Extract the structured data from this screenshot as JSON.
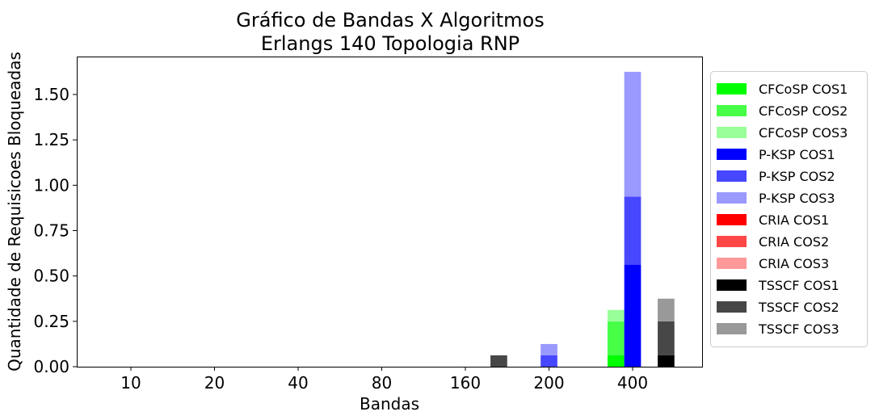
{
  "chart_data": {
    "type": "bar",
    "stacked": true,
    "title": "Gráfico de Bandas X Algoritmos",
    "subtitle": "Erlangs 140 Topologia RNP",
    "xlabel": "Bandas",
    "ylabel": "Quantidade de Requisicoes Bloqueadas",
    "categories": [
      "10",
      "20",
      "40",
      "80",
      "160",
      "200",
      "400"
    ],
    "ylim": [
      0,
      1.7
    ],
    "yticks": [
      "0.00",
      "0.25",
      "0.50",
      "0.75",
      "1.00",
      "1.25",
      "1.50"
    ],
    "grid": false,
    "legend_position": "right",
    "algorithms": [
      {
        "name": "CFCoSP",
        "colors": [
          "#00ff00",
          "#47ff47",
          "#99ff99"
        ],
        "series": [
          {
            "name": "CFCoSP COS1",
            "values": [
              0,
              0,
              0,
              0,
              0,
              0,
              0.0625
            ]
          },
          {
            "name": "CFCoSP COS2",
            "values": [
              0,
              0,
              0,
              0,
              0,
              0,
              0.1875
            ]
          },
          {
            "name": "CFCoSP COS3",
            "values": [
              0,
              0,
              0,
              0,
              0,
              0,
              0.0625
            ]
          }
        ]
      },
      {
        "name": "P-KSP",
        "colors": [
          "#0000ff",
          "#4747ff",
          "#9999ff"
        ],
        "series": [
          {
            "name": "P-KSP COS1",
            "values": [
              0,
              0,
              0,
              0,
              0,
              0,
              0.5625
            ]
          },
          {
            "name": "P-KSP COS2",
            "values": [
              0,
              0,
              0,
              0,
              0,
              0.0625,
              0.375
            ]
          },
          {
            "name": "P-KSP COS3",
            "values": [
              0,
              0,
              0,
              0,
              0,
              0.0625,
              0.6875
            ]
          }
        ]
      },
      {
        "name": "CRIA",
        "colors": [
          "#ff0000",
          "#ff4747",
          "#ff9999"
        ],
        "series": [
          {
            "name": "CRIA COS1",
            "values": [
              0,
              0,
              0,
              0,
              0,
              0,
              0
            ]
          },
          {
            "name": "CRIA COS2",
            "values": [
              0,
              0,
              0,
              0,
              0,
              0,
              0
            ]
          },
          {
            "name": "CRIA COS3",
            "values": [
              0,
              0,
              0,
              0,
              0,
              0,
              0
            ]
          }
        ]
      },
      {
        "name": "TSSCF",
        "colors": [
          "#000000",
          "#474747",
          "#999999"
        ],
        "series": [
          {
            "name": "TSSCF COS1",
            "values": [
              0,
              0,
              0,
              0,
              0,
              0,
              0.0625
            ]
          },
          {
            "name": "TSSCF COS2",
            "values": [
              0,
              0,
              0,
              0,
              0.0625,
              0,
              0.1875
            ]
          },
          {
            "name": "TSSCF COS3",
            "values": [
              0,
              0,
              0,
              0,
              0,
              0,
              0.125
            ]
          }
        ]
      }
    ]
  }
}
